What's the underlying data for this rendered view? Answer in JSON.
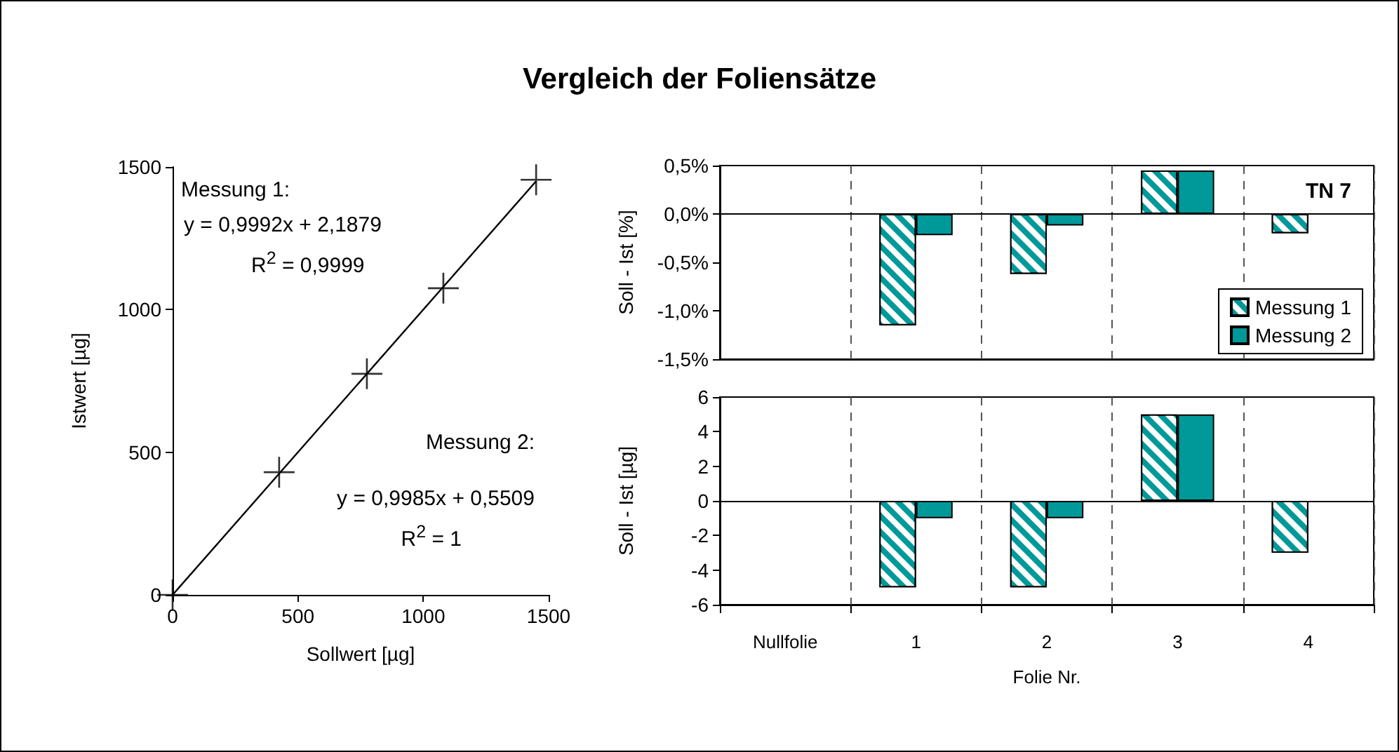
{
  "chart_data": [
    {
      "type": "scatter",
      "title": "Vergleich der Foliensätze",
      "xlabel": "Sollwert [µg]",
      "ylabel": "Istwert [µg]",
      "x": [
        0,
        425,
        775,
        1080,
        1450
      ],
      "series": [
        {
          "color": "#000000",
          "values": [
            0,
            430,
            775,
            1075,
            1455
          ]
        },
        {
          "type": "line",
          "color": "#000000",
          "marker": "none",
          "x": [
            0,
            1450
          ],
          "values": [
            0,
            1450
          ]
        }
      ],
      "xlim": [
        0,
        1500
      ],
      "xticks": [
        0,
        500,
        1000,
        1500
      ],
      "ylim": [
        0,
        1500
      ],
      "yticks": [
        0,
        500,
        1000,
        1500
      ],
      "marker": "cross",
      "grid": false,
      "annotations": [
        "Messung 1:",
        "y = 0,9992x + 2,1879",
        "R$^{2}$ = 0,9999",
        "Messung 2:",
        "y = 0,9985x + 0,5509",
        "R$^{2}$ = 1"
      ]
    },
    {
      "type": "bar",
      "ylabel": "Soll - Ist [%]",
      "categories": [
        null,
        null,
        null,
        null,
        null
      ],
      "series": [
        {
          "name": "Messung 1",
          "color": "#009999",
          "values": [
            null,
            -1.15,
            -0.62,
            0.45,
            -0.2
          ]
        },
        {
          "name": "Messung 2",
          "color": "#009999",
          "values": [
            null,
            -0.22,
            -0.12,
            0.45,
            null
          ]
        }
      ],
      "ylim": [
        -1.5,
        0.5
      ],
      "yticks": [
        {
          "value": -1.5,
          "label": "-1,5%"
        },
        {
          "value": -1.0,
          "label": "-1,0%"
        },
        {
          "value": -0.5,
          "label": "-0,5%"
        },
        {
          "value": 0,
          "label": "0,0%"
        },
        {
          "value": 0.5,
          "label": "0,5%"
        }
      ],
      "grid": "x",
      "legend": "right",
      "tick_labels": "y",
      "annotations": [
        "TN 7"
      ]
    },
    {
      "type": "bar",
      "ylabel": "Soll - Ist [µg]",
      "xlabel": "Folie Nr.",
      "categories": [
        "Nullfolie",
        "1",
        "2",
        "3",
        "4"
      ],
      "series": [
        {
          "color": "#009999",
          "values": [
            null,
            -5,
            -5,
            5,
            -3
          ]
        },
        {
          "color": "#009999",
          "values": [
            null,
            -1,
            -1,
            5,
            null
          ]
        }
      ],
      "ylim": [
        -6,
        6
      ],
      "yticks": [
        -6,
        -4,
        -2,
        0,
        2,
        4,
        6
      ],
      "grid": "x"
    }
  ]
}
